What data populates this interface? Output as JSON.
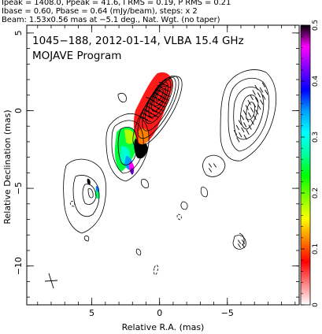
{
  "header": {
    "line1": "Ipeak = 1408.0, Ppeak = 41.6, I RMS = 0.19, P RMS = 0.21",
    "line2": "Ibase = 0.60, Pbase = 0.64 (mJy/beam), steps: x 2",
    "line3": "Beam: 1.53x0.56 mas at −5.1 deg., Nat. Wgt. (no taper)"
  },
  "chart_data": {
    "type": "contour",
    "title_line1": "1045−188, 2012-01-14, VLBA 15.4 GHz",
    "title_line2": "MOJAVE Program",
    "xlabel": "Relative R.A. (mas)",
    "ylabel": "Relative Declination (mas)",
    "xlim": [
      9.8,
      -10.3
    ],
    "ylim": [
      -12.5,
      5.5
    ],
    "x_ticks": [
      5,
      0,
      -5
    ],
    "x_tick_labels": [
      "5",
      "0",
      "−5"
    ],
    "y_ticks": [
      5,
      0,
      -5,
      -10
    ],
    "y_tick_labels": [
      "5",
      "0",
      "−5",
      "−10"
    ],
    "colorbar": {
      "min": 0,
      "max": 0.5,
      "ticks": [
        0,
        0.1,
        0.2,
        0.3,
        0.4,
        0.5
      ],
      "tick_labels": [
        "0",
        "0.1",
        "0.2",
        "0.3",
        "0.4",
        "0.5"
      ],
      "colors": [
        "#ffffff",
        "#ff8080",
        "#ff0000",
        "#ff8000",
        "#ffff00",
        "#80ff00",
        "#00ff00",
        "#00ffa0",
        "#00ffff",
        "#00a0ff",
        "#0000ff",
        "#8000ff",
        "#ff00ff",
        "#000000"
      ]
    }
  }
}
